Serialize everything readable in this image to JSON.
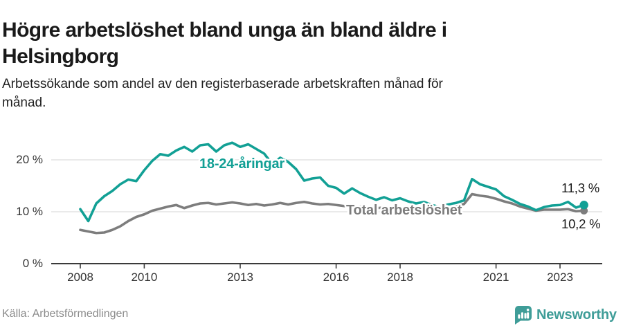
{
  "header": {
    "title": "Högre arbetslöshet bland unga än bland äldre i\nHelsingborg",
    "subtitle": "Arbetssökande som andel av den registerbaserade arbetskraften månad för\nmånad."
  },
  "colors": {
    "young": "#12a095",
    "total": "#7d7d7d",
    "grid": "#e3e3e3",
    "axis": "#3a3a3a",
    "text": "#1b1b1b",
    "brand": "#3f9d98"
  },
  "chart_data": {
    "type": "line",
    "title": "Högre arbetslöshet bland unga än bland äldre i Helsingborg",
    "xlabel": "",
    "ylabel": "",
    "unit": "%",
    "x_start": 2008,
    "x_step": 0.25,
    "x_end": 2023.75,
    "ylim": [
      0,
      25
    ],
    "grid": true,
    "yticks": [
      {
        "value": 0,
        "label": "0 %"
      },
      {
        "value": 10,
        "label": "10 %"
      },
      {
        "value": 20,
        "label": "20 %"
      }
    ],
    "xticks": [
      {
        "value": 2008,
        "label": "2008"
      },
      {
        "value": 2010,
        "label": "2010"
      },
      {
        "value": 2013,
        "label": "2013"
      },
      {
        "value": 2016,
        "label": "2016"
      },
      {
        "value": 2018,
        "label": "2018"
      },
      {
        "value": 2021,
        "label": "2021"
      },
      {
        "value": 2023,
        "label": "2023"
      }
    ],
    "series": [
      {
        "name": "18-24-åringar",
        "color_key": "young",
        "end_dot_radius": 6.2,
        "values": [
          10.5,
          8.2,
          11.6,
          13.0,
          14.0,
          15.3,
          16.2,
          15.9,
          18.0,
          19.8,
          21.1,
          20.8,
          21.8,
          22.5,
          21.6,
          22.8,
          23.0,
          21.6,
          22.8,
          23.3,
          22.5,
          23.0,
          22.1,
          21.2,
          19.2,
          20.4,
          19.6,
          18.2,
          16.0,
          16.4,
          16.6,
          15.0,
          14.6,
          13.5,
          14.5,
          13.6,
          12.9,
          12.3,
          12.8,
          12.2,
          12.6,
          12.0,
          11.6,
          11.9,
          11.3,
          10.9,
          11.4,
          11.7,
          12.2,
          16.3,
          15.3,
          14.8,
          14.3,
          13.0,
          12.3,
          11.5,
          11.0,
          10.3,
          10.9,
          11.2,
          11.3,
          11.9,
          10.8,
          11.3
        ]
      },
      {
        "name": "Total arbetslöshet",
        "color_key": "total",
        "end_dot_radius": 5.4,
        "values": [
          6.5,
          6.2,
          5.9,
          6.0,
          6.5,
          7.2,
          8.2,
          9.0,
          9.5,
          10.2,
          10.6,
          11.0,
          11.3,
          10.7,
          11.2,
          11.6,
          11.7,
          11.4,
          11.6,
          11.8,
          11.6,
          11.3,
          11.5,
          11.2,
          11.4,
          11.7,
          11.4,
          11.7,
          11.9,
          11.6,
          11.4,
          11.5,
          11.3,
          11.1,
          10.9,
          11.0,
          10.9,
          10.7,
          10.8,
          10.6,
          10.7,
          10.9,
          10.6,
          10.4,
          10.3,
          10.6,
          10.8,
          11.0,
          11.5,
          13.4,
          13.1,
          12.9,
          12.5,
          12.0,
          11.6,
          11.0,
          10.6,
          10.2,
          10.4,
          10.4,
          10.4,
          10.5,
          10.1,
          10.2
        ]
      }
    ],
    "annotations": {
      "young_label": "18-24-åringar",
      "total_label": "Total arbetslöshet",
      "young_end_value": "11,3 %",
      "total_end_value": "10,2 %"
    }
  },
  "footer": {
    "source": "Källa: Arbetsförmedlingen",
    "brand_name": "Newsworthy"
  }
}
